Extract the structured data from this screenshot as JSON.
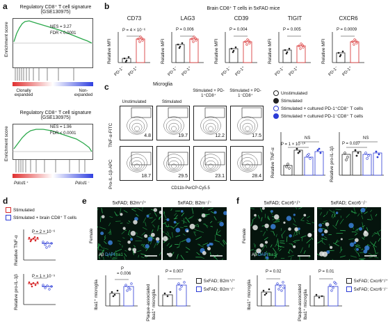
{
  "panel_a": {
    "label": "a",
    "plot1": {
      "title_line1": "Regulatory CD8⁺ T cell signature",
      "title_line2": "(GSE130975)",
      "nes": "NES = 3.27",
      "fdr": "FDR < 0.0001",
      "ylabel": "Enrichment score",
      "left_label_line1": "Clonally",
      "left_label_line2": "expanded",
      "right_label_line1": "Non-",
      "right_label_line2": "expanded"
    },
    "plot2": {
      "title_line1": "Regulatory CD8⁺ T cell signature",
      "title_line2": "(GSE130975)",
      "nes": "NES = 1.96",
      "fdr": "FDR < 0.0001",
      "ylabel": "Enrichment score",
      "left_label": "Pdcd1⁺",
      "right_label": "Pdcd1⁻"
    }
  },
  "panel_b": {
    "label": "b",
    "header": "Brain CD8⁺ T cells in 5xFAD mice",
    "ylabel": "Relative MFI",
    "xcat1": "PD-1⁻",
    "xcat2": "PD-1⁺",
    "markers": [
      {
        "name": "CD73",
        "p": "P = 4 × 10⁻⁶"
      },
      {
        "name": "LAG3",
        "p": "P = 0.006"
      },
      {
        "name": "CD39",
        "p": "P = 0.004"
      },
      {
        "name": "TIGIT",
        "p": "P = 0.005"
      },
      {
        "name": "CXCR6",
        "p": "P = 0.0009"
      }
    ]
  },
  "panel_c": {
    "label": "c",
    "microglia": "Microglia",
    "cols": [
      "Unstimulated",
      "Stimulated",
      "Stimulated + PD-1⁺CD8⁺",
      "Stimulated + PD-1⁻CD8⁺"
    ],
    "row1_label": "TNF-α-FITC",
    "row2_label": "Pro-IL-1β-APC",
    "xaxis": "CD11b-PerCP-Cy5.5",
    "row1_values": [
      "4.8",
      "19.7",
      "12.2",
      "17.5"
    ],
    "row2_values": [
      "18.7",
      "29.5",
      "23.1",
      "28.4"
    ],
    "legend": [
      "Unstimulated",
      "Stimulated",
      "Stimulated + cultured PD-1⁺CD8⁺ T cells",
      "Stimulated + cultured PD-1⁻CD8⁺ T cells"
    ],
    "bar1": {
      "ylabel": "Relative TNF-α",
      "ns": "NS",
      "p": "P = 1 × 10⁻¹⁰"
    },
    "bar2": {
      "ylabel": "Relative pro-IL-1β",
      "ns": "NS",
      "p": "P = 0.037"
    }
  },
  "panel_d": {
    "label": "d",
    "legend": [
      "Stimulated",
      "Stimulated + brain CD8⁺ T cells"
    ],
    "plot1": {
      "ylabel": "Relative TNF-α",
      "p": "P = 2 × 10⁻⁶"
    },
    "plot2": {
      "ylabel": "Relative pro-IL-1β",
      "p": "P = 1 × 10⁻⁵"
    }
  },
  "panel_e": {
    "label": "e",
    "img1_title": "5xFAD; B2m⁺/⁺",
    "img2_title": "5xFAD; B2m⁻/⁻",
    "side": "Female",
    "stain_ab": "Aβ",
    "stain_dapi": "DAPI",
    "stain_iba": "Iba1",
    "bar1": {
      "ylabel": "Iba1⁺ microglia",
      "p_line1": "P",
      "p_line2": "= 0.006"
    },
    "bar2": {
      "ylabel_line1": "Plaque-associated",
      "ylabel_line2": "Iba1⁺ microglia",
      "p": "P = 0.007"
    },
    "legend": [
      "5xFAD; B2m⁺/⁺",
      "5xFAD; B2m⁻/⁻"
    ]
  },
  "panel_f": {
    "label": "f",
    "img1_title": "5xFAD; Cxcr6⁺/⁺",
    "img2_title": "5xFAD; Cxcr6⁻/⁻",
    "side": "Female",
    "stain_ab": "Aβ",
    "stain_dapi": "DAPI",
    "stain_iba": "Iba1",
    "bar1": {
      "ylabel": "Iba1⁺ microglia",
      "p": "P = 0.02"
    },
    "bar2": {
      "ylabel_line1": "Plaque-associated",
      "ylabel_line2": "Iba1⁺ microglia",
      "p": "P = 0.01"
    },
    "legend": [
      "5xFAD; Cxcr6⁺/⁺",
      "5xFAD; Cxcr6⁻/⁻"
    ]
  },
  "colors": {
    "red": "#d62728",
    "blue": "#2b3bd6",
    "green": "#2aa84a",
    "dark": "#111111"
  }
}
